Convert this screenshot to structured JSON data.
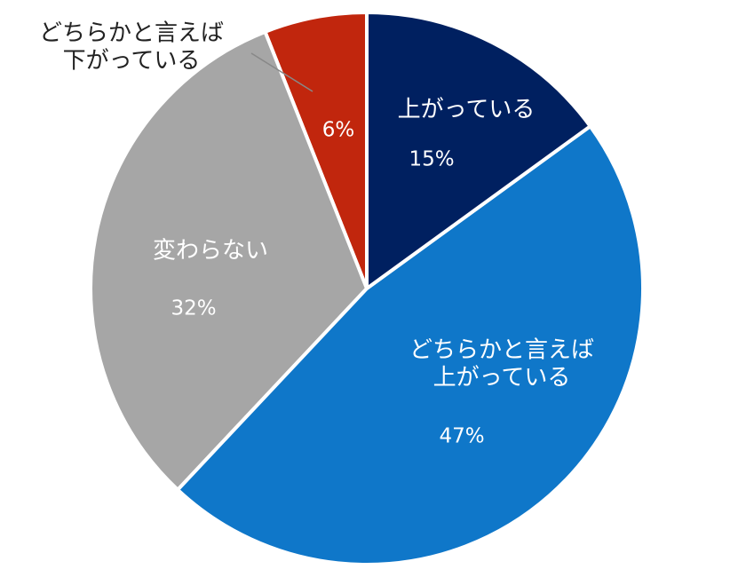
{
  "chart_data": {
    "type": "pie",
    "categories": [
      "上がっている",
      "どちらかと言えば\n上がっている",
      "変わらない",
      "どちらかと言えば\n下がっている"
    ],
    "values": [
      15,
      47,
      32,
      6
    ],
    "value_labels": [
      "15%",
      "47%",
      "32%",
      "6%"
    ],
    "colors": [
      "#002060",
      "#0f77c9",
      "#a6a6a6",
      "#c1260d"
    ]
  }
}
